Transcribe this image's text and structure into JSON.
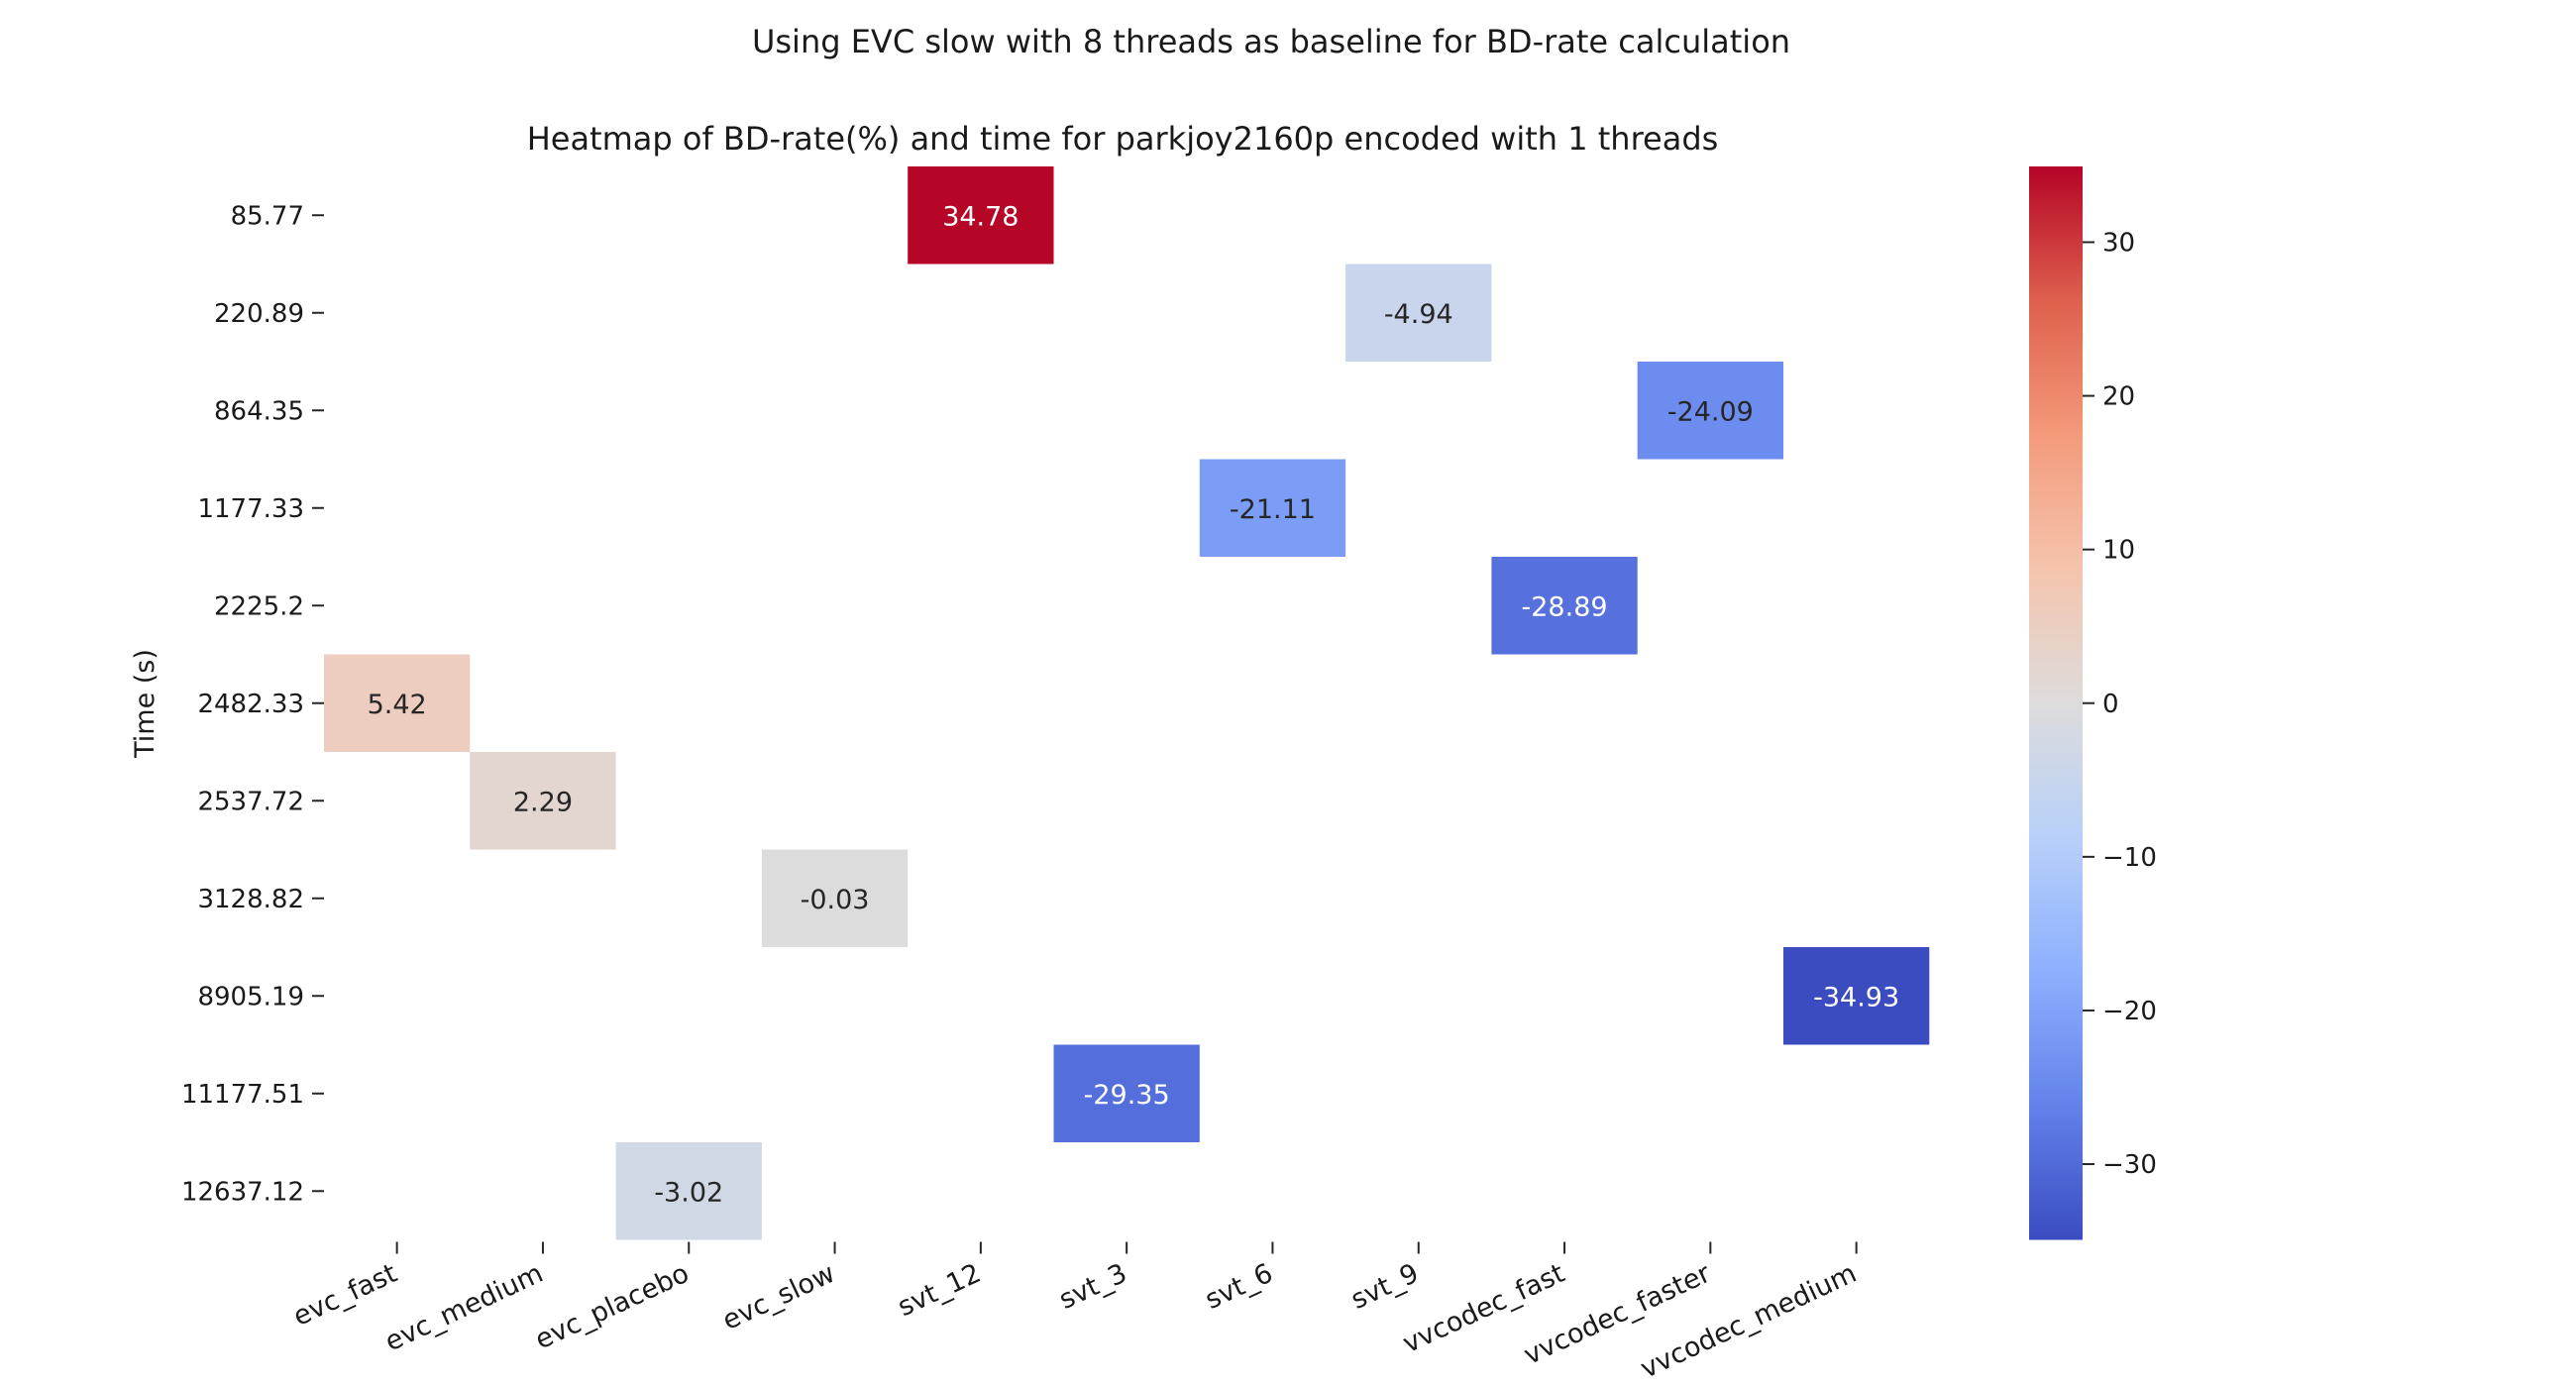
{
  "suptitle": "Using EVC slow with 8 threads as baseline for BD-rate calculation",
  "chart_data": {
    "type": "heatmap",
    "title": "Heatmap of BD-rate(%) and time for parkjoy2160p encoded with 1 threads",
    "xlabel": "",
    "ylabel": "Time (s)",
    "x_categories": [
      "evc_fast",
      "evc_medium",
      "evc_placebo",
      "evc_slow",
      "svt_12",
      "svt_3",
      "svt_6",
      "svt_9",
      "vvcodec_fast",
      "vvcodec_faster",
      "vvcodec_medium"
    ],
    "y_categories": [
      "85.77",
      "220.89",
      "864.35",
      "1177.33",
      "2225.2",
      "2482.33",
      "2537.72",
      "3128.82",
      "8905.19",
      "11177.51",
      "12637.12"
    ],
    "cells": [
      {
        "x": "svt_12",
        "y": "85.77",
        "value": 34.78,
        "label": "34.78"
      },
      {
        "x": "svt_9",
        "y": "220.89",
        "value": -4.94,
        "label": "-4.94"
      },
      {
        "x": "vvcodec_faster",
        "y": "864.35",
        "value": -24.09,
        "label": "-24.09"
      },
      {
        "x": "svt_6",
        "y": "1177.33",
        "value": -21.11,
        "label": "-21.11"
      },
      {
        "x": "vvcodec_fast",
        "y": "2225.2",
        "value": -28.89,
        "label": "-28.89"
      },
      {
        "x": "evc_fast",
        "y": "2482.33",
        "value": 5.42,
        "label": "5.42"
      },
      {
        "x": "evc_medium",
        "y": "2537.72",
        "value": 2.29,
        "label": "2.29"
      },
      {
        "x": "evc_slow",
        "y": "3128.82",
        "value": -0.03,
        "label": "-0.03"
      },
      {
        "x": "vvcodec_medium",
        "y": "8905.19",
        "value": -34.93,
        "label": "-34.93"
      },
      {
        "x": "svt_3",
        "y": "11177.51",
        "value": -29.35,
        "label": "-29.35"
      },
      {
        "x": "evc_placebo",
        "y": "12637.12",
        "value": -3.02,
        "label": "-3.02"
      }
    ],
    "colormap": "coolwarm",
    "vmin": -34.93,
    "vmax": 34.93,
    "colorbar_ticks": [
      30,
      20,
      10,
      0,
      -10,
      -20,
      -30
    ],
    "colorbar_tick_labels": [
      "30",
      "20",
      "10",
      "0",
      "−10",
      "−20",
      "−30"
    ]
  }
}
